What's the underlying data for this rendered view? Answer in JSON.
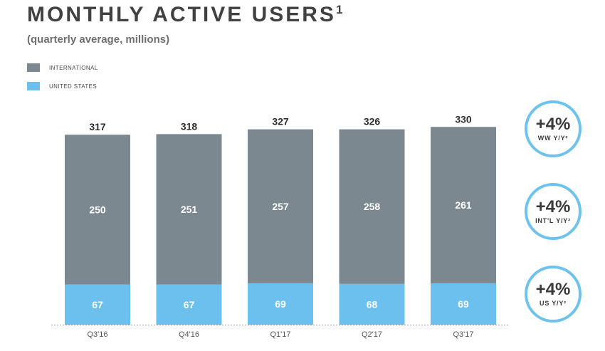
{
  "title": "MONTHLY ACTIVE USERS",
  "title_footnote": "1",
  "subtitle": "(quarterly average, millions)",
  "legend": [
    {
      "label": "INTERNATIONAL",
      "color": "#7c8890"
    },
    {
      "label": "UNITED STATES",
      "color": "#6cc0ee"
    }
  ],
  "badges": [
    {
      "value": "+4%",
      "label": "WW Y/Y²"
    },
    {
      "value": "+4%",
      "label": "INT'L Y/Y²"
    },
    {
      "value": "+4%",
      "label": "US Y/Y²"
    }
  ],
  "chart_data": {
    "type": "bar",
    "stacked": true,
    "categories": [
      "Q3'16",
      "Q4'16",
      "Q1'17",
      "Q2'17",
      "Q3'17"
    ],
    "series": [
      {
        "name": "UNITED STATES",
        "values": [
          67,
          67,
          69,
          68,
          69
        ],
        "color": "#6cc0ee"
      },
      {
        "name": "INTERNATIONAL",
        "values": [
          250,
          251,
          257,
          258,
          261
        ],
        "color": "#7c8890"
      }
    ],
    "totals": [
      317,
      318,
      327,
      326,
      330
    ],
    "legend_position": "top-left",
    "grid": false
  }
}
